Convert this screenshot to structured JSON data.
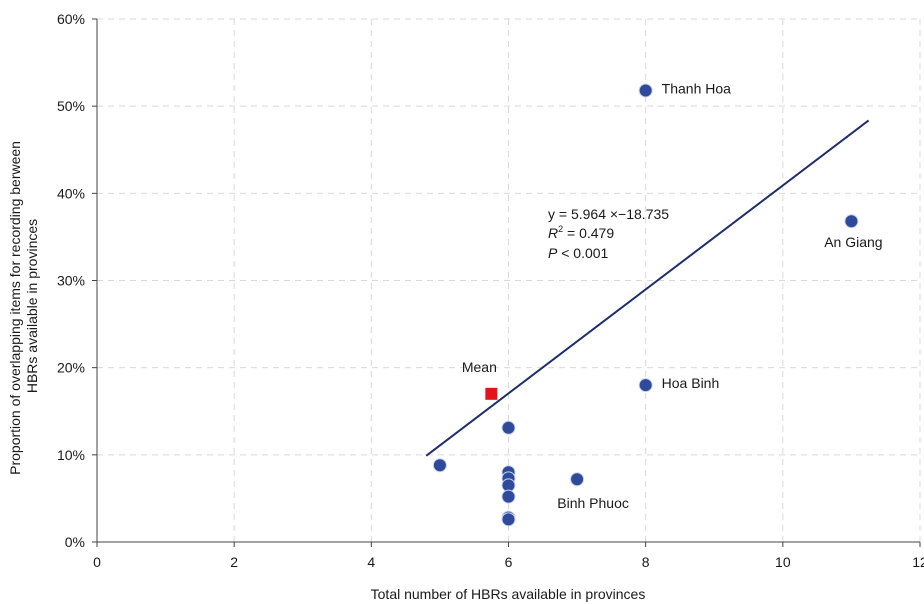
{
  "chart_data": {
    "type": "scatter",
    "xlabel": "Total number of HBRs available in provinces",
    "ylabel_lines": [
      "Proportion of overlapping items for recording berween",
      "HBRs available in provinces"
    ],
    "xlim": [
      0,
      12
    ],
    "ylim": [
      0,
      60
    ],
    "x_ticks": [
      "0",
      "2",
      "4",
      "6",
      "8",
      "10",
      "12"
    ],
    "y_ticks": [
      "0%",
      "10%",
      "20%",
      "30%",
      "40%",
      "50%",
      "60%"
    ],
    "grid": true,
    "points": [
      {
        "x": 8,
        "y": 51.8,
        "label": "Thanh Hoa"
      },
      {
        "x": 11,
        "y": 36.8,
        "label": "An Giang"
      },
      {
        "x": 8,
        "y": 18,
        "label": "Hoa Binh"
      },
      {
        "x": 7,
        "y": 7.2,
        "label": "Binh Phuoc"
      },
      {
        "x": 5,
        "y": 8.8,
        "label": ""
      },
      {
        "x": 6,
        "y": 13.1,
        "label": ""
      },
      {
        "x": 6,
        "y": 8.0,
        "label": ""
      },
      {
        "x": 6,
        "y": 7.3,
        "label": ""
      },
      {
        "x": 6,
        "y": 6.5,
        "label": ""
      },
      {
        "x": 6,
        "y": 5.2,
        "label": ""
      },
      {
        "x": 6,
        "y": 2.8,
        "label": ""
      },
      {
        "x": 6,
        "y": 2.6,
        "label": ""
      }
    ],
    "mean": {
      "x": 5.75,
      "y": 17,
      "label": "Mean"
    },
    "regression": {
      "x_range": [
        4.8,
        11.25
      ],
      "slope": 5.964,
      "intercept": -18.735,
      "equation": "y = 5.964 ×−18.735",
      "r2_symbol": "R",
      "r2_superscript": "2",
      "r2_value": " = 0.479",
      "p_symbol": "P",
      "p_value": " < 0.001"
    },
    "colors": {
      "point": "#2f4a9a",
      "mean": "#e3131b",
      "line": "#1f2d6b",
      "grid": "#d9d9d9"
    }
  }
}
